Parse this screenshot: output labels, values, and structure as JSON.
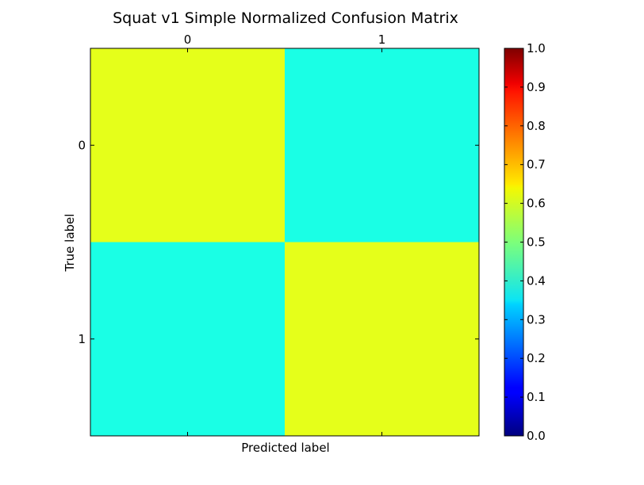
{
  "chart_data": {
    "type": "heatmap",
    "title": "Squat v1 Simple Normalized Confusion Matrix",
    "xlabel": "Predicted label",
    "ylabel": "True label",
    "x_categories": [
      "0",
      "1"
    ],
    "y_categories": [
      "0",
      "1"
    ],
    "values": [
      [
        0.6,
        0.4
      ],
      [
        0.4,
        0.6
      ]
    ],
    "colormap": "jet",
    "colorbar": {
      "range": [
        0.0,
        1.0
      ],
      "ticks": [
        "0.0",
        "0.1",
        "0.2",
        "0.3",
        "0.4",
        "0.5",
        "0.6",
        "0.7",
        "0.8",
        "0.9",
        "1.0"
      ]
    },
    "x_tick_position": "top",
    "grid": false
  }
}
